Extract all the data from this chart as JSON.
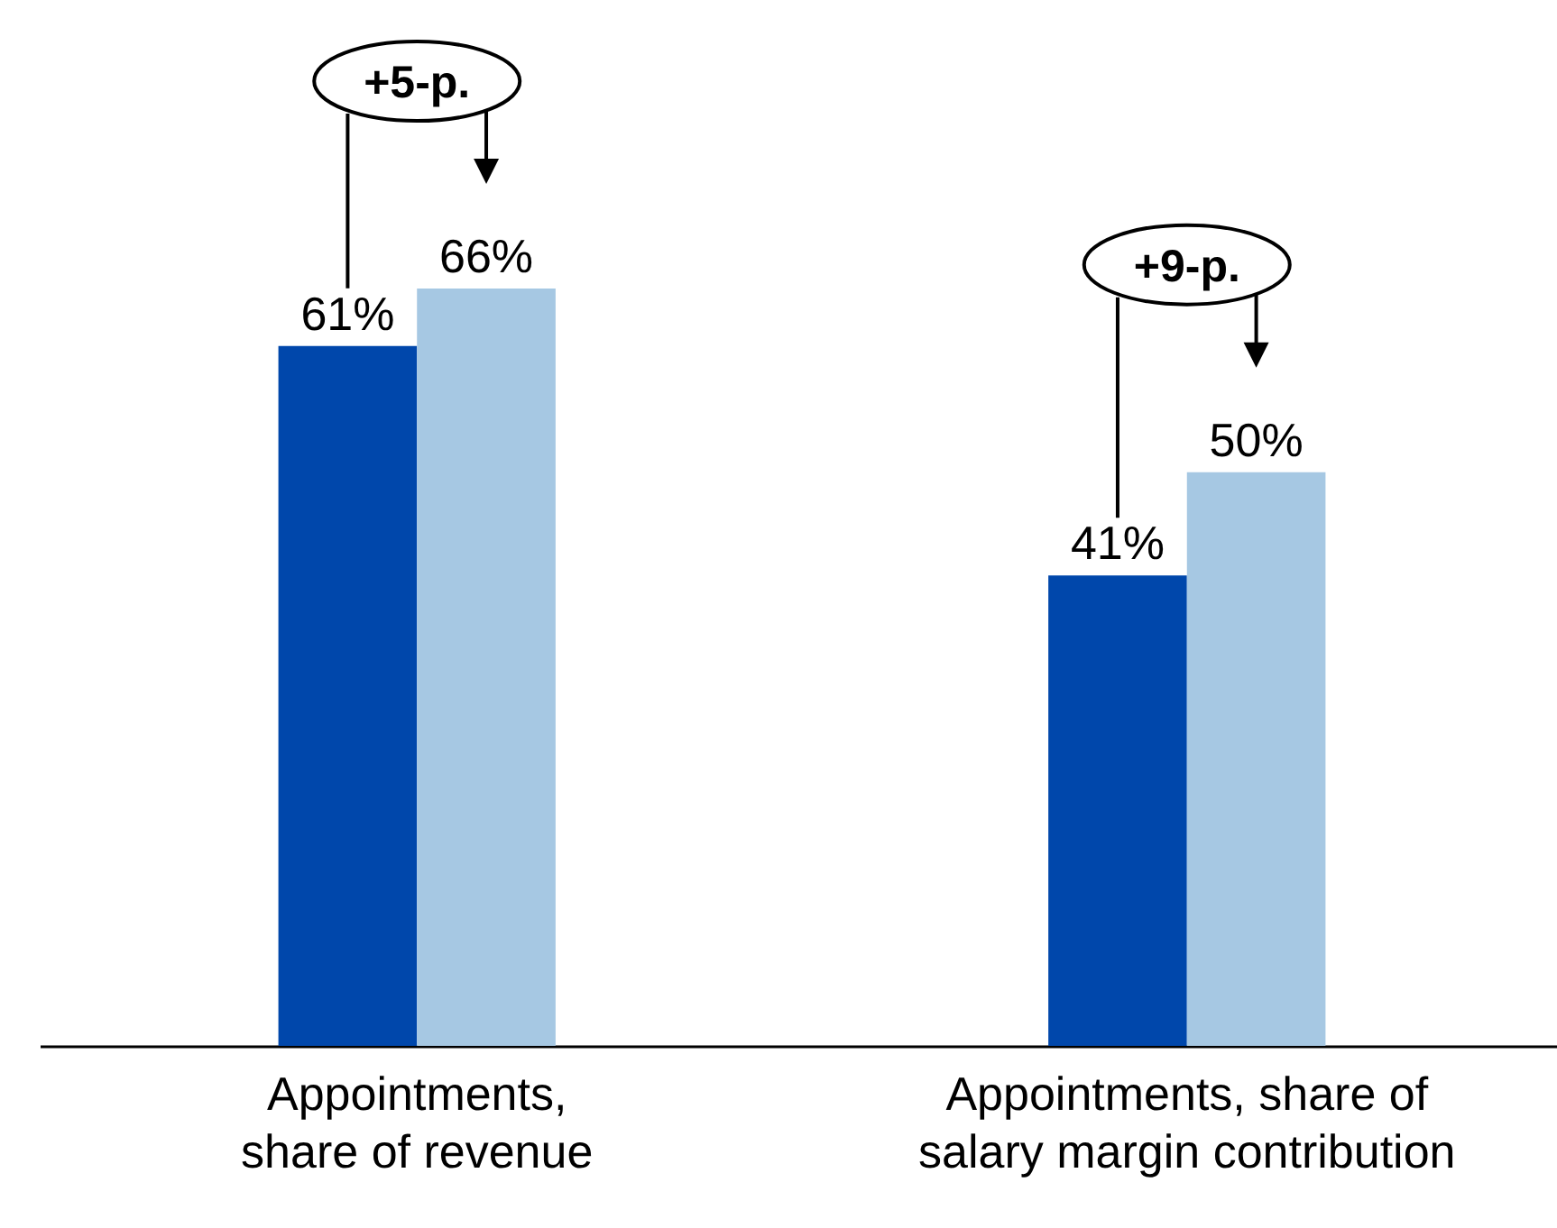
{
  "chart_data": {
    "type": "bar",
    "categories": [
      "Appointments, share of revenue",
      "Appointments, share of salary margin contribution"
    ],
    "series": [
      {
        "color": "#0047ab",
        "values": [
          61,
          41
        ],
        "value_labels": [
          "61%",
          "41%"
        ]
      },
      {
        "color": "#a6c8e3",
        "values": [
          66,
          50
        ],
        "value_labels": [
          "66%",
          "50%"
        ]
      }
    ],
    "grid": false,
    "annotations": [
      "+5-p.",
      "+9-p."
    ]
  }
}
